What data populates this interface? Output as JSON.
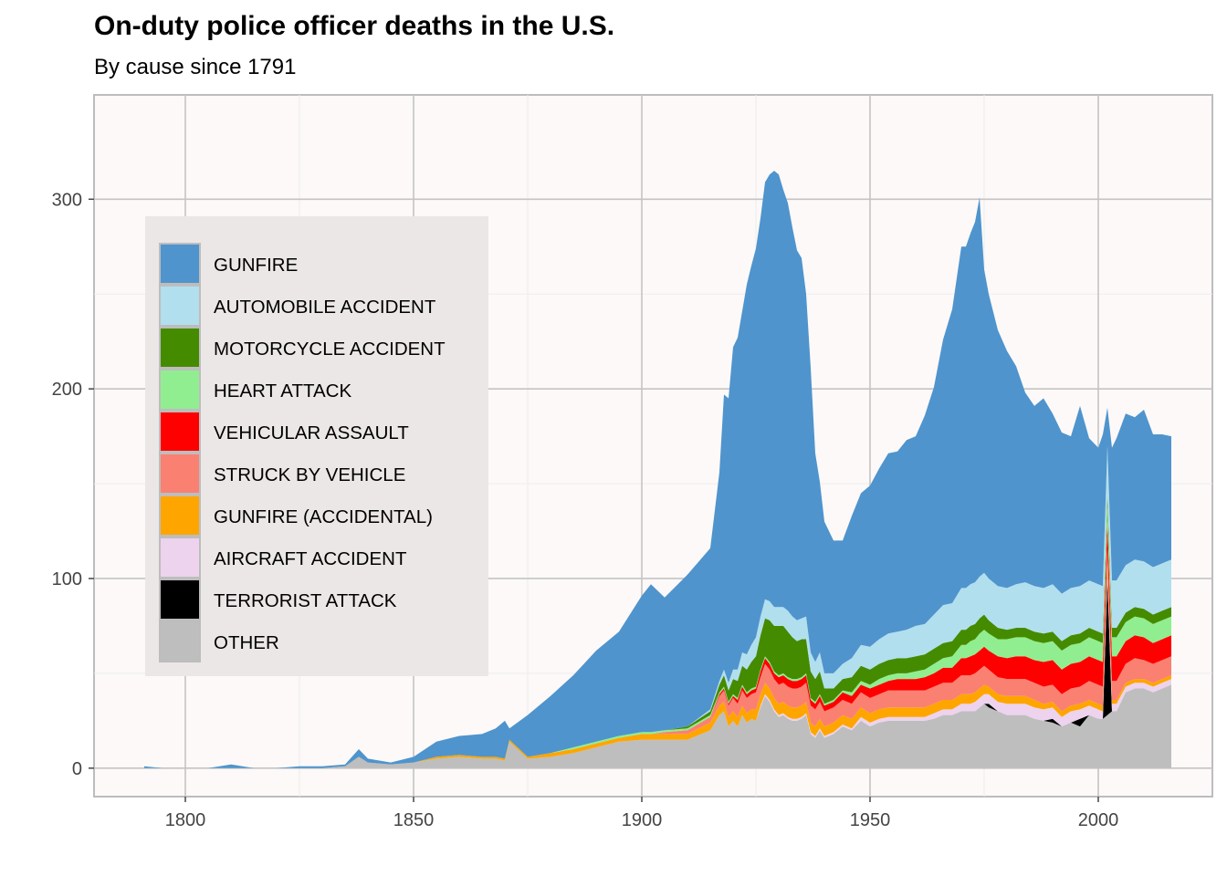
{
  "title": "On-duty police officer deaths in the U.S.",
  "subtitle": "By cause since 1791",
  "chart_data": {
    "type": "area",
    "stacked": true,
    "title": "On-duty police officer deaths in the U.S.",
    "subtitle": "By cause since 1791",
    "xlabel": "",
    "ylabel": "",
    "xlim": [
      1780,
      2025
    ],
    "ylim": [
      -15,
      355
    ],
    "x_ticks": [
      1800,
      1850,
      1900,
      1950,
      2000
    ],
    "y_ticks": [
      0,
      100,
      200,
      300
    ],
    "grid": true,
    "legend_position": "top-left inside",
    "x": [
      1791,
      1795,
      1800,
      1805,
      1810,
      1815,
      1820,
      1825,
      1830,
      1835,
      1838,
      1840,
      1845,
      1850,
      1855,
      1860,
      1865,
      1868,
      1870,
      1871,
      1875,
      1880,
      1885,
      1890,
      1895,
      1900,
      1902,
      1905,
      1910,
      1915,
      1917,
      1918,
      1919,
      1920,
      1921,
      1922,
      1923,
      1924,
      1925,
      1926,
      1927,
      1928,
      1929,
      1930,
      1931,
      1932,
      1933,
      1934,
      1935,
      1936,
      1937,
      1938,
      1939,
      1940,
      1942,
      1944,
      1946,
      1948,
      1950,
      1952,
      1954,
      1956,
      1958,
      1960,
      1962,
      1964,
      1966,
      1968,
      1970,
      1971,
      1972,
      1973,
      1974,
      1975,
      1976,
      1978,
      1980,
      1982,
      1984,
      1986,
      1988,
      1990,
      1992,
      1994,
      1996,
      1998,
      2000,
      2001,
      2002,
      2003,
      2004,
      2006,
      2008,
      2010,
      2012,
      2014,
      2016
    ],
    "series": [
      {
        "name": "OTHER",
        "color": "#BEBEBE",
        "values": [
          0,
          0,
          0,
          0,
          0,
          0,
          0,
          0,
          0,
          1,
          6,
          3,
          2,
          3,
          5,
          6,
          5,
          5,
          4,
          14,
          5,
          6,
          8,
          11,
          14,
          15,
          15,
          15,
          15,
          20,
          28,
          30,
          22,
          25,
          22,
          28,
          24,
          26,
          25,
          32,
          38,
          35,
          30,
          27,
          28,
          26,
          25,
          25,
          26,
          28,
          18,
          16,
          20,
          16,
          18,
          22,
          20,
          25,
          22,
          24,
          25,
          25,
          25,
          25,
          25,
          26,
          28,
          28,
          30,
          30,
          30,
          30,
          32,
          34,
          32,
          30,
          28,
          28,
          28,
          26,
          25,
          24,
          22,
          24,
          22,
          28,
          26,
          26,
          28,
          30,
          30,
          40,
          42,
          42,
          40,
          42,
          44
        ]
      },
      {
        "name": "TERRORIST ATTACK",
        "color": "#000000",
        "values": [
          0,
          0,
          0,
          0,
          0,
          0,
          0,
          0,
          0,
          0,
          0,
          0,
          0,
          0,
          0,
          0,
          0,
          0,
          0,
          0,
          0,
          0,
          0,
          0,
          0,
          0,
          0,
          0,
          0,
          0,
          0,
          0,
          0,
          0,
          0,
          0,
          0,
          0,
          0,
          0,
          0,
          0,
          0,
          0,
          0,
          0,
          0,
          0,
          0,
          0,
          0,
          0,
          0,
          0,
          0,
          0,
          0,
          0,
          0,
          0,
          0,
          0,
          0,
          0,
          0,
          0,
          0,
          0,
          0,
          0,
          0,
          0,
          0,
          0,
          2,
          0,
          0,
          0,
          0,
          0,
          0,
          2,
          0,
          0,
          4,
          0,
          0,
          0,
          72,
          0,
          0,
          0,
          0,
          0,
          0,
          0,
          0
        ]
      },
      {
        "name": "AIRCRAFT ACCIDENT",
        "color": "#EDD3ED",
        "values": [
          0,
          0,
          0,
          0,
          0,
          0,
          0,
          0,
          0,
          0,
          0,
          0,
          0,
          0,
          0,
          0,
          0,
          0,
          0,
          0,
          0,
          0,
          0,
          0,
          0,
          0,
          0,
          0,
          0,
          0,
          0,
          0,
          0,
          0,
          0,
          0,
          0,
          0,
          0,
          1,
          1,
          1,
          1,
          1,
          1,
          1,
          1,
          1,
          1,
          1,
          1,
          1,
          1,
          1,
          1,
          1,
          1,
          2,
          2,
          2,
          2,
          2,
          2,
          2,
          2,
          3,
          3,
          3,
          4,
          4,
          4,
          5,
          5,
          5,
          5,
          5,
          6,
          6,
          6,
          6,
          6,
          6,
          5,
          6,
          5,
          5,
          5,
          4,
          4,
          4,
          4,
          3,
          3,
          3,
          3,
          3,
          3
        ]
      },
      {
        "name": "GUNFIRE (ACCIDENTAL)",
        "color": "#FFA500",
        "values": [
          0,
          0,
          0,
          0,
          0,
          0,
          0,
          0,
          0,
          0,
          0,
          0,
          0,
          0,
          1,
          1,
          1,
          1,
          1,
          1,
          1,
          2,
          2,
          2,
          2,
          3,
          3,
          3,
          3,
          4,
          5,
          5,
          5,
          5,
          5,
          5,
          5,
          5,
          6,
          6,
          6,
          6,
          6,
          6,
          6,
          6,
          6,
          6,
          6,
          6,
          5,
          5,
          5,
          5,
          5,
          5,
          5,
          5,
          5,
          5,
          5,
          5,
          5,
          5,
          5,
          5,
          5,
          5,
          5,
          5,
          5,
          5,
          5,
          5,
          4,
          4,
          4,
          4,
          4,
          4,
          3,
          3,
          3,
          3,
          3,
          3,
          3,
          3,
          3,
          2,
          2,
          2,
          2,
          2,
          2,
          2,
          2
        ]
      },
      {
        "name": "STRUCK BY VEHICLE",
        "color": "#FA8072",
        "values": [
          0,
          0,
          0,
          0,
          0,
          0,
          0,
          0,
          0,
          0,
          0,
          0,
          0,
          0,
          0,
          0,
          0,
          0,
          0,
          0,
          0,
          0,
          0,
          0,
          0,
          0,
          0,
          1,
          2,
          3,
          5,
          6,
          6,
          7,
          7,
          8,
          8,
          8,
          9,
          9,
          10,
          10,
          10,
          10,
          10,
          10,
          10,
          10,
          10,
          10,
          9,
          9,
          9,
          8,
          8,
          8,
          8,
          8,
          8,
          8,
          9,
          9,
          9,
          9,
          9,
          9,
          9,
          9,
          10,
          10,
          10,
          10,
          10,
          10,
          9,
          9,
          9,
          9,
          9,
          9,
          9,
          9,
          9,
          9,
          9,
          10,
          10,
          10,
          10,
          10,
          10,
          10,
          11,
          10,
          10,
          10,
          10
        ]
      },
      {
        "name": "VEHICULAR ASSAULT",
        "color": "#FF0000",
        "values": [
          0,
          0,
          0,
          0,
          0,
          0,
          0,
          0,
          0,
          0,
          0,
          0,
          0,
          0,
          0,
          0,
          0,
          0,
          0,
          0,
          0,
          0,
          0,
          0,
          0,
          0,
          0,
          0,
          0,
          0,
          1,
          1,
          1,
          1,
          2,
          2,
          2,
          2,
          2,
          3,
          3,
          3,
          3,
          4,
          4,
          4,
          4,
          4,
          4,
          4,
          3,
          3,
          3,
          3,
          3,
          4,
          4,
          4,
          5,
          5,
          5,
          6,
          6,
          6,
          7,
          7,
          8,
          8,
          9,
          9,
          10,
          10,
          10,
          10,
          10,
          11,
          11,
          12,
          12,
          12,
          13,
          13,
          13,
          13,
          13,
          13,
          13,
          13,
          13,
          13,
          13,
          12,
          12,
          12,
          11,
          11,
          11
        ]
      },
      {
        "name": "HEART ATTACK",
        "color": "#90EE90",
        "values": [
          0,
          0,
          0,
          0,
          0,
          0,
          0,
          0,
          0,
          0,
          0,
          0,
          0,
          0,
          0,
          0,
          0,
          0,
          0,
          0,
          0,
          0,
          1,
          1,
          1,
          1,
          1,
          1,
          1,
          1,
          1,
          1,
          1,
          1,
          1,
          1,
          1,
          1,
          1,
          1,
          1,
          1,
          1,
          1,
          1,
          1,
          1,
          1,
          1,
          1,
          1,
          1,
          1,
          1,
          1,
          1,
          2,
          2,
          2,
          3,
          3,
          3,
          3,
          4,
          4,
          5,
          5,
          6,
          7,
          7,
          8,
          8,
          9,
          9,
          9,
          9,
          10,
          10,
          10,
          10,
          10,
          10,
          10,
          10,
          10,
          10,
          10,
          10,
          10,
          10,
          10,
          10,
          10,
          10,
          10,
          10,
          10
        ]
      },
      {
        "name": "MOTORCYCLE ACCIDENT",
        "color": "#458B00",
        "values": [
          0,
          0,
          0,
          0,
          0,
          0,
          0,
          0,
          0,
          0,
          0,
          0,
          0,
          0,
          0,
          0,
          0,
          0,
          0,
          0,
          0,
          0,
          0,
          0,
          0,
          0,
          0,
          0,
          1,
          2,
          4,
          6,
          6,
          8,
          9,
          10,
          12,
          14,
          16,
          18,
          20,
          22,
          24,
          26,
          25,
          24,
          22,
          20,
          20,
          18,
          14,
          12,
          12,
          8,
          6,
          6,
          8,
          8,
          8,
          8,
          8,
          8,
          8,
          8,
          8,
          8,
          8,
          8,
          8,
          8,
          8,
          8,
          8,
          8,
          7,
          6,
          5,
          5,
          5,
          5,
          5,
          5,
          5,
          5,
          5,
          5,
          5,
          5,
          5,
          5,
          5,
          5,
          5,
          5,
          5,
          5,
          5
        ]
      },
      {
        "name": "AUTOMOBILE ACCIDENT",
        "color": "#B2DFEE",
        "values": [
          0,
          0,
          0,
          0,
          0,
          0,
          0,
          0,
          0,
          0,
          0,
          0,
          0,
          0,
          0,
          0,
          0,
          0,
          0,
          0,
          0,
          0,
          0,
          0,
          0,
          0,
          0,
          0,
          0,
          1,
          2,
          3,
          4,
          5,
          6,
          7,
          8,
          9,
          10,
          10,
          10,
          10,
          10,
          10,
          10,
          11,
          11,
          11,
          11,
          12,
          10,
          9,
          10,
          8,
          8,
          8,
          10,
          11,
          12,
          13,
          14,
          14,
          15,
          16,
          16,
          18,
          20,
          20,
          22,
          22,
          22,
          22,
          22,
          22,
          22,
          22,
          22,
          23,
          24,
          24,
          24,
          25,
          25,
          25,
          25,
          25,
          25,
          25,
          25,
          25,
          25,
          25,
          25,
          25,
          25,
          25,
          25
        ]
      },
      {
        "name": "GUNFIRE",
        "color": "#4F94CD",
        "values": [
          1,
          0,
          0,
          0,
          2,
          0,
          0,
          1,
          1,
          1,
          4,
          2,
          1,
          3,
          8,
          10,
          12,
          15,
          20,
          6,
          22,
          30,
          38,
          48,
          55,
          72,
          78,
          70,
          80,
          85,
          110,
          145,
          150,
          170,
          175,
          180,
          195,
          200,
          205,
          210,
          220,
          225,
          230,
          228,
          220,
          215,
          205,
          195,
          190,
          170,
          150,
          110,
          90,
          80,
          70,
          65,
          75,
          80,
          85,
          90,
          95,
          95,
          100,
          100,
          110,
          120,
          140,
          155,
          180,
          180,
          185,
          190,
          200,
          160,
          150,
          135,
          125,
          115,
          100,
          95,
          100,
          90,
          85,
          80,
          95,
          75,
          72,
          80,
          20,
          70,
          75,
          80,
          75,
          80,
          70,
          68,
          65
        ]
      }
    ]
  }
}
